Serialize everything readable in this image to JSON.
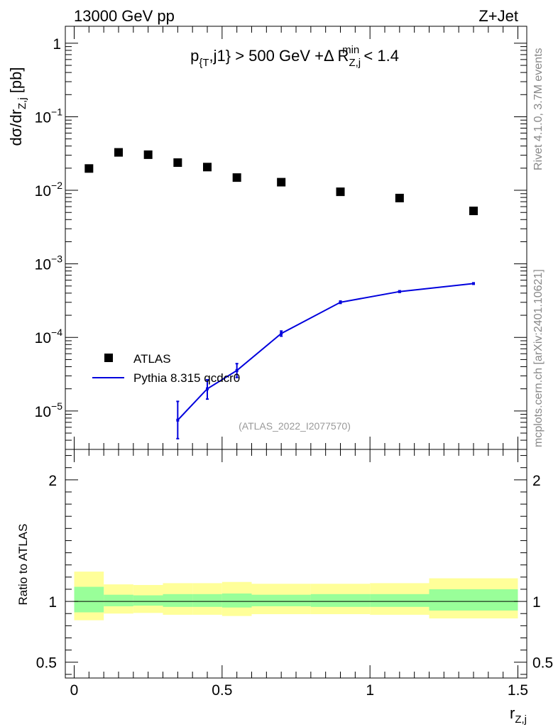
{
  "header": {
    "left": "13000 GeV pp",
    "right": "Z+Jet"
  },
  "side_labels": {
    "rivet": "Rivet 4.1.0,  3.7M events",
    "mcplots": "mcplots.cern.ch [arXiv:2401.10621]"
  },
  "chart_data": [
    {
      "type": "scatter",
      "panel": "main",
      "title": "p_{T},j1} > 500 GeV +Δ R_{Z,j}^{min} < 1.4",
      "title_parts": {
        "pre": "p",
        "sub1": "{T",
        "mid": ",j1} > 500 GeV +Δ R",
        "sub2": "Z,j",
        "sup2": "min",
        "post": " < 1.4"
      },
      "ylabel_parts": {
        "pre": "dσ/dr",
        "sub": "Z,j",
        "post": " [pb]"
      },
      "xlabel_parts": {
        "pre": "r",
        "sub": "Z,j"
      },
      "yscale": "log",
      "ylim": [
        3e-06,
        1.7
      ],
      "xlim": [
        -0.03,
        1.53
      ],
      "y_ticks": [
        {
          "value": 1,
          "base": "1",
          "exp": ""
        },
        {
          "value": 0.1,
          "base": "10",
          "exp": "−1"
        },
        {
          "value": 0.01,
          "base": "10",
          "exp": "−2"
        },
        {
          "value": 0.001,
          "base": "10",
          "exp": "−3"
        },
        {
          "value": 0.0001,
          "base": "10",
          "exp": "−4"
        },
        {
          "value": 1e-05,
          "base": "10",
          "exp": "−5"
        }
      ],
      "series": [
        {
          "name": "ATLAS",
          "style": "markers",
          "color": "#000000",
          "x": [
            0.05,
            0.15,
            0.25,
            0.35,
            0.45,
            0.55,
            0.7,
            0.9,
            1.1,
            1.35
          ],
          "y": [
            0.0198,
            0.0328,
            0.0305,
            0.0238,
            0.0207,
            0.0149,
            0.0129,
            0.00955,
            0.00785,
            0.00525
          ]
        },
        {
          "name": "Pythia 8.315 qcdcr0",
          "style": "line",
          "color": "#0000dd",
          "x": [
            0.35,
            0.45,
            0.55,
            0.7,
            0.9,
            1.1,
            1.35
          ],
          "y": [
            7.5e-06,
            2e-05,
            3.55e-05,
            0.000113,
            0.0003,
            0.00042,
            0.00054
          ],
          "y_low": [
            4.2e-06,
            1.45e-05,
            2.85e-05,
            0.000104,
            0.00029,
            0.00041,
            0.00053
          ],
          "y_high": [
            1.35e-05,
            2.65e-05,
            4.4e-05,
            0.000122,
            0.000312,
            0.00043,
            0.00055
          ]
        }
      ],
      "watermark": "(ATLAS_2022_I2077570)"
    },
    {
      "type": "area",
      "panel": "ratio",
      "ylabel": "Ratio to ATLAS",
      "ylim": [
        0.37,
        2.25
      ],
      "xlim": [
        -0.03,
        1.53
      ],
      "y_ticks": [
        {
          "value": 2,
          "label": "2"
        },
        {
          "value": 1,
          "label": "1"
        },
        {
          "value": 0.5,
          "label": "0.5"
        }
      ],
      "x_ticks": [
        {
          "value": 0,
          "label": "0"
        },
        {
          "value": 0.5,
          "label": "0.5"
        },
        {
          "value": 1,
          "label": "1"
        },
        {
          "value": 1.5,
          "label": "1.5"
        }
      ],
      "bins": [
        {
          "x0": 0.0,
          "x1": 0.1,
          "stat_low": 0.91,
          "stat_high": 1.12,
          "tot_low": 0.845,
          "tot_high": 1.245
        },
        {
          "x0": 0.1,
          "x1": 0.2,
          "stat_low": 0.96,
          "stat_high": 1.055,
          "tot_low": 0.9,
          "tot_high": 1.14
        },
        {
          "x0": 0.2,
          "x1": 0.3,
          "stat_low": 0.965,
          "stat_high": 1.05,
          "tot_low": 0.905,
          "tot_high": 1.135
        },
        {
          "x0": 0.3,
          "x1": 0.4,
          "stat_low": 0.955,
          "stat_high": 1.06,
          "tot_low": 0.89,
          "tot_high": 1.15
        },
        {
          "x0": 0.4,
          "x1": 0.5,
          "stat_low": 0.955,
          "stat_high": 1.06,
          "tot_low": 0.89,
          "tot_high": 1.15
        },
        {
          "x0": 0.5,
          "x1": 0.6,
          "stat_low": 0.95,
          "stat_high": 1.065,
          "tot_low": 0.88,
          "tot_high": 1.16
        },
        {
          "x0": 0.6,
          "x1": 0.8,
          "stat_low": 0.96,
          "stat_high": 1.055,
          "tot_low": 0.895,
          "tot_high": 1.145
        },
        {
          "x0": 0.8,
          "x1": 1.0,
          "stat_low": 0.955,
          "stat_high": 1.06,
          "tot_low": 0.895,
          "tot_high": 1.145
        },
        {
          "x0": 1.0,
          "x1": 1.2,
          "stat_low": 0.955,
          "stat_high": 1.06,
          "tot_low": 0.89,
          "tot_high": 1.15
        },
        {
          "x0": 1.2,
          "x1": 1.5,
          "stat_low": 0.925,
          "stat_high": 1.1,
          "tot_low": 0.86,
          "tot_high": 1.19
        }
      ],
      "band_colors": {
        "stat": "#99ff99",
        "total": "#ffff99"
      }
    }
  ]
}
